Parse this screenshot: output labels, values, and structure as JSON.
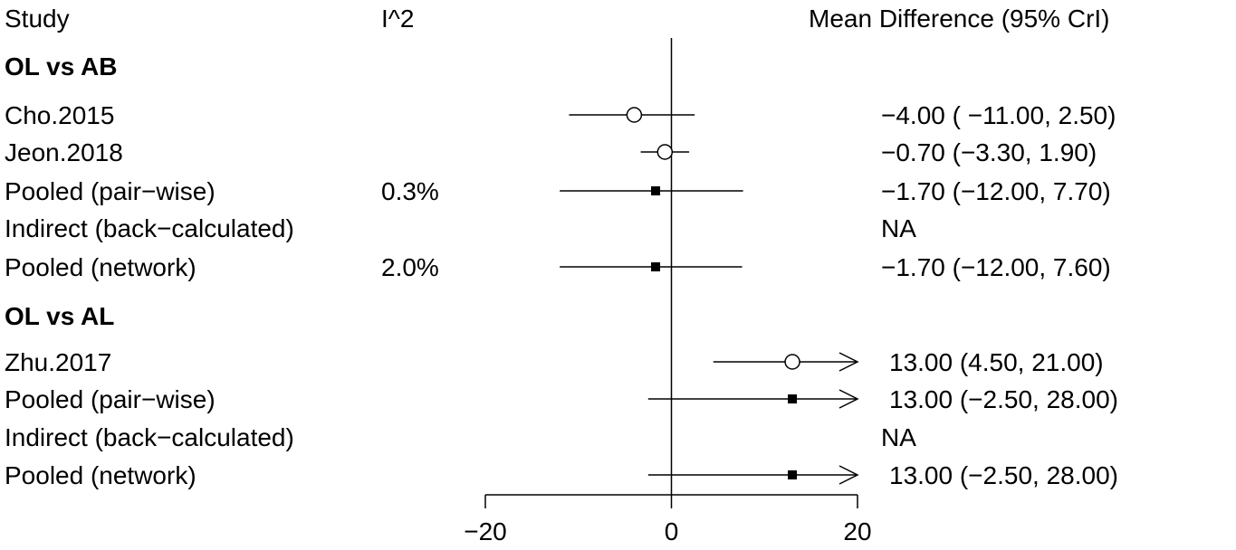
{
  "chart_data": {
    "type": "forest",
    "headers": {
      "study": "Study",
      "i2": "I^2",
      "effect": "Mean Difference (95% CrI)"
    },
    "xlim": [
      -20,
      20
    ],
    "xticks": [
      -20,
      0,
      20
    ],
    "xtick_labels": [
      "−20",
      "0",
      "20"
    ],
    "reference_line": 0,
    "groups": [
      {
        "title": "OL vs AB",
        "rows": [
          {
            "label": "Cho.2015",
            "i2": "",
            "mean": -4.0,
            "lower": -11.0,
            "upper": 2.5,
            "marker": "circle",
            "text": "−4.00 ( −11.00, 2.50)"
          },
          {
            "label": "Jeon.2018",
            "i2": "",
            "mean": -0.7,
            "lower": -3.3,
            "upper": 1.9,
            "marker": "circle",
            "text": "−0.70 (−3.30, 1.90)"
          },
          {
            "label": "Pooled (pair−wise)",
            "i2": "0.3%",
            "mean": -1.7,
            "lower": -12.0,
            "upper": 7.7,
            "marker": "square",
            "text": "−1.70 (−12.00, 7.70)"
          },
          {
            "label": "Indirect (back−calculated)",
            "i2": "",
            "mean": null,
            "lower": null,
            "upper": null,
            "marker": "none",
            "text": "NA"
          },
          {
            "label": "Pooled (network)",
            "i2": "2.0%",
            "mean": -1.7,
            "lower": -12.0,
            "upper": 7.6,
            "marker": "square",
            "text": "−1.70 (−12.00, 7.60)"
          }
        ]
      },
      {
        "title": "OL vs AL",
        "rows": [
          {
            "label": "Zhu.2017",
            "i2": "",
            "mean": 13.0,
            "lower": 4.5,
            "upper": 21.0,
            "marker": "circle",
            "text": "13.00 (4.50, 21.00)"
          },
          {
            "label": "Pooled (pair−wise)",
            "i2": "",
            "mean": 13.0,
            "lower": -2.5,
            "upper": 28.0,
            "marker": "square",
            "text": "13.00 (−2.50, 28.00)"
          },
          {
            "label": "Indirect (back−calculated)",
            "i2": "",
            "mean": null,
            "lower": null,
            "upper": null,
            "marker": "none",
            "text": "NA"
          },
          {
            "label": "Pooled (network)",
            "i2": "",
            "mean": 13.0,
            "lower": -2.5,
            "upper": 28.0,
            "marker": "square",
            "text": "13.00 (−2.50, 28.00)"
          }
        ]
      }
    ]
  }
}
